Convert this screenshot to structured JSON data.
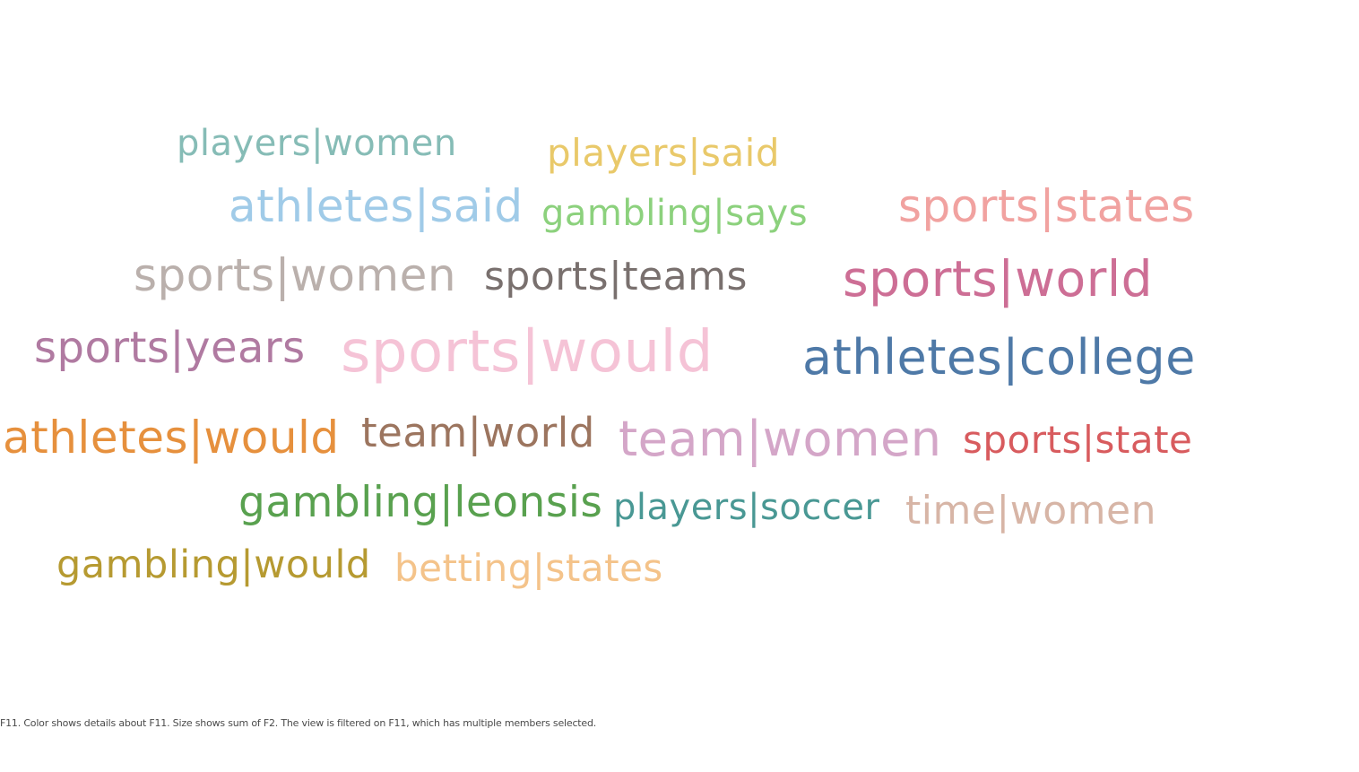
{
  "chart_data": {
    "type": "word-cloud",
    "size_field": "F2",
    "color_field": "F11",
    "words": [
      {
        "text": "players|women",
        "size": 40,
        "color": "#86bcb6"
      },
      {
        "text": "players|said",
        "size": 42,
        "color": "#e9c96a"
      },
      {
        "text": "athletes|said",
        "size": 50,
        "color": "#a0cbe8"
      },
      {
        "text": "gambling|says",
        "size": 40,
        "color": "#8cd17d"
      },
      {
        "text": "sports|states",
        "size": 50,
        "color": "#f1a2a0"
      },
      {
        "text": "sports|women",
        "size": 50,
        "color": "#bab0ac"
      },
      {
        "text": "sports|teams",
        "size": 44,
        "color": "#79706e"
      },
      {
        "text": "sports|world",
        "size": 55,
        "color": "#cd6e95"
      },
      {
        "text": "sports|years",
        "size": 48,
        "color": "#b07aa1"
      },
      {
        "text": "sports|would",
        "size": 64,
        "color": "#f5c3d6"
      },
      {
        "text": "athletes|college",
        "size": 54,
        "color": "#4e79a7"
      },
      {
        "text": "athletes|would",
        "size": 50,
        "color": "#e6903d"
      },
      {
        "text": "team|world",
        "size": 45,
        "color": "#9c755f"
      },
      {
        "text": "team|women",
        "size": 54,
        "color": "#d4a6c8"
      },
      {
        "text": "sports|state",
        "size": 42,
        "color": "#d85b5e"
      },
      {
        "text": "gambling|leonsis",
        "size": 47,
        "color": "#59a14f"
      },
      {
        "text": "players|soccer",
        "size": 40,
        "color": "#499894"
      },
      {
        "text": "time|women",
        "size": 44,
        "color": "#d7b5a6"
      },
      {
        "text": "gambling|would",
        "size": 43,
        "color": "#b69a31"
      },
      {
        "text": "betting|states",
        "size": 42,
        "color": "#f4c38a"
      }
    ]
  },
  "caption": "F11.  Color shows details about F11.  Size shows sum of F2. The view is filtered on F11, which has multiple members selected."
}
